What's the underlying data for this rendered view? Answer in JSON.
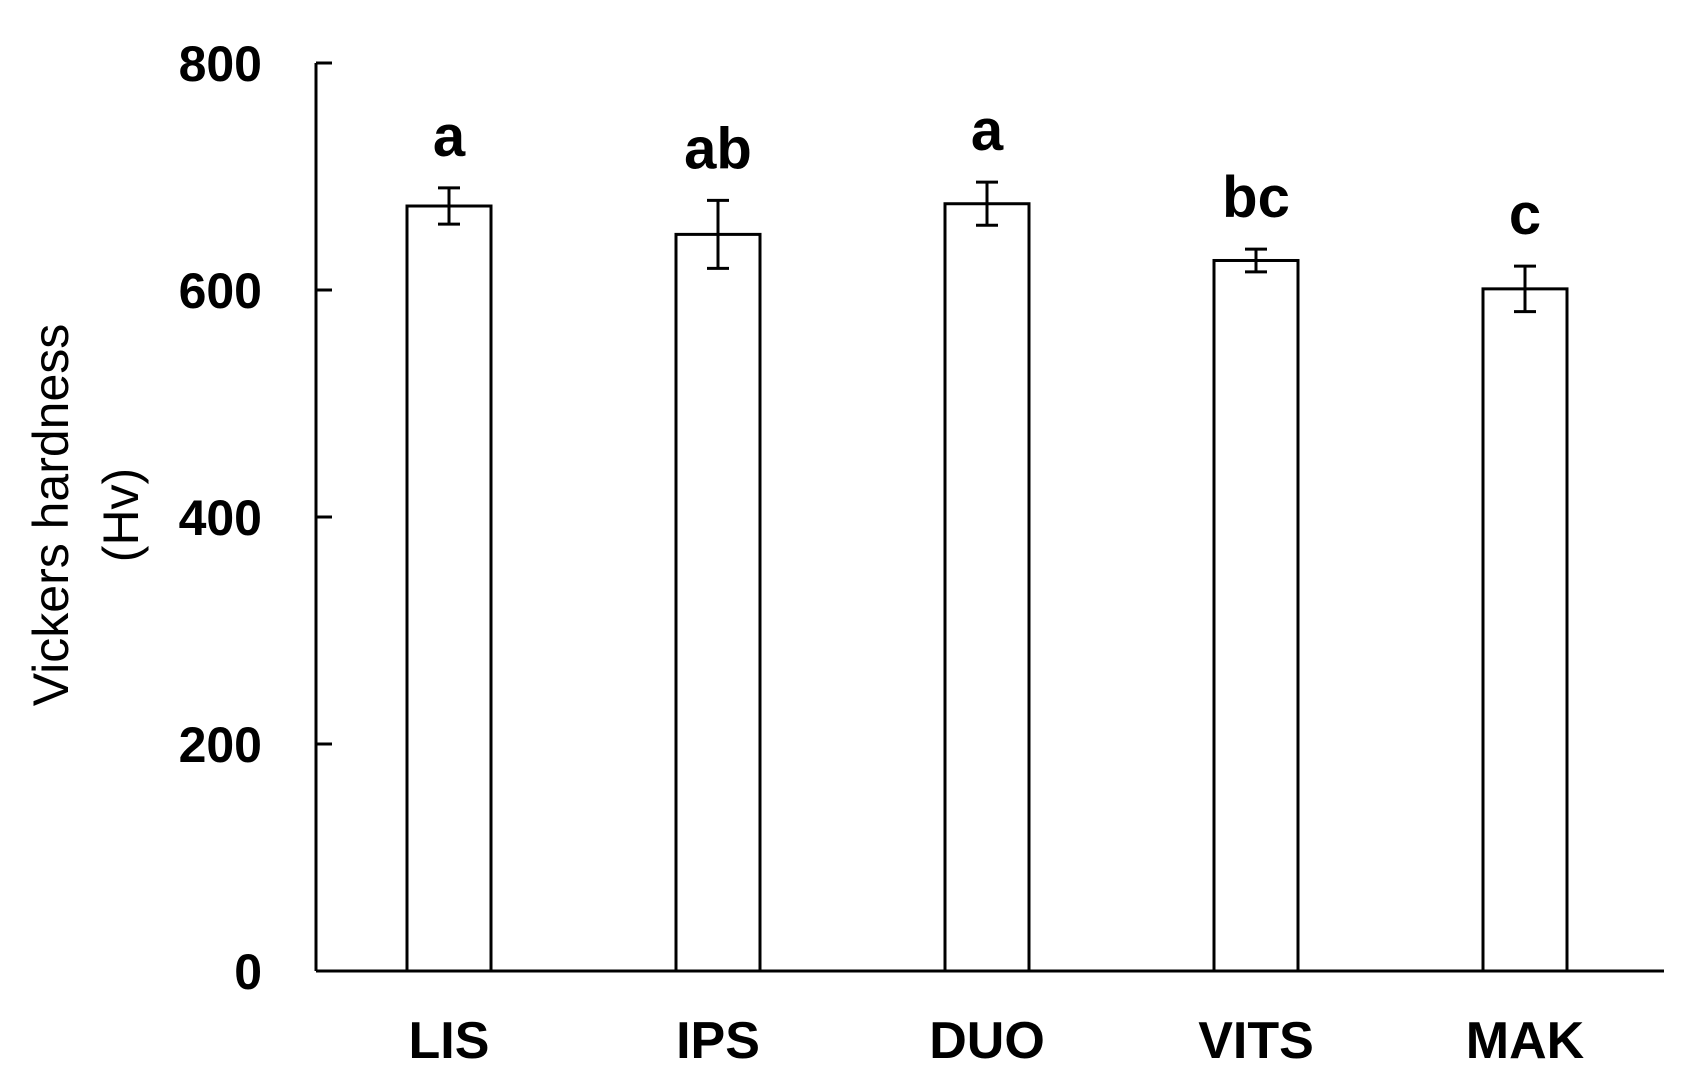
{
  "chart_data": {
    "type": "bar",
    "categories": [
      "LIS",
      "IPS",
      "DUO",
      "VITS",
      "MAK"
    ],
    "values": [
      674,
      649,
      676,
      626,
      601
    ],
    "error": [
      16,
      30,
      19,
      10,
      20
    ],
    "significance_labels": [
      "a",
      "ab",
      "a",
      "bc",
      "c"
    ],
    "ylabel_line1": "Vickers hardness",
    "ylabel_line2": "(Hv)",
    "ylim": [
      0,
      800
    ],
    "yticks": [
      0,
      200,
      400,
      600,
      800
    ],
    "grid": false,
    "bar_fill": "#ffffff",
    "bar_stroke": "#000000"
  }
}
